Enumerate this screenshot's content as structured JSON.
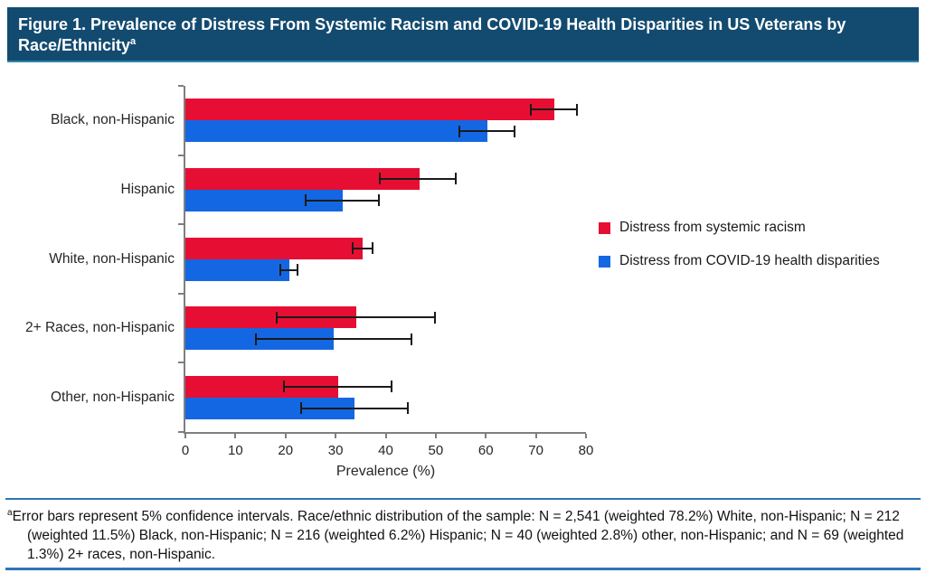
{
  "header": {
    "title": "Figure 1. Prevalence of Distress From Systemic Racism and COVID-19 Health Disparities in US Veterans by Race/Ethnicity",
    "footnote_marker": "a"
  },
  "chart_data": {
    "type": "bar",
    "orientation": "horizontal",
    "title": "Prevalence of Distress From Systemic Racism and COVID-19 Health Disparities in US Veterans by Race/Ethnicity",
    "categories": [
      "Black, non-Hispanic",
      "Hispanic",
      "White, non-Hispanic",
      "2+ Races, non-Hispanic",
      "Other, non-Hispanic"
    ],
    "series": [
      {
        "name": "Distress from systemic racism",
        "color": "#E60F33",
        "values": [
          73.7,
          46.8,
          35.4,
          34.1,
          30.5
        ],
        "ci_low": [
          68.9,
          38.9,
          33.4,
          18.2,
          19.7
        ],
        "ci_high": [
          78.2,
          54.0,
          37.4,
          49.9,
          41.1
        ]
      },
      {
        "name": "Distress from COVID-19 health disparities",
        "color": "#1467E2",
        "values": [
          60.3,
          31.5,
          20.7,
          29.6,
          33.7
        ],
        "ci_low": [
          54.7,
          24.1,
          19.0,
          14.0,
          23.1
        ],
        "ci_high": [
          65.8,
          38.7,
          22.4,
          45.2,
          44.5
        ]
      }
    ],
    "xlabel": "Prevalence (%)",
    "xlim": [
      0,
      80
    ],
    "xticks": [
      0,
      10,
      20,
      30,
      40,
      50,
      60,
      70,
      80
    ],
    "grid": false,
    "legend_position": "center-right",
    "error_bars_note": "5% confidence intervals"
  },
  "footnote": {
    "marker": "a",
    "text": "Error bars represent 5% confidence intervals. Race/ethnic distribution of the sample: N = 2,541 (weighted 78.2%) White, non-Hispanic; N = 212 (weighted 11.5%) Black, non-Hispanic; N = 216 (weighted 6.2%) Hispanic; N = 40 (weighted 2.8%) other, non-Hispanic; and N = 69 (weighted 1.3%) 2+ races, non-Hispanic."
  },
  "colors": {
    "header_bg": "#134B70",
    "header_edge": "#2E86AB",
    "rule_blue": "#2E75B6",
    "axis_gray": "#7f7f7f",
    "text_dark": "#262626",
    "error_bar": "#1a1a1a"
  }
}
